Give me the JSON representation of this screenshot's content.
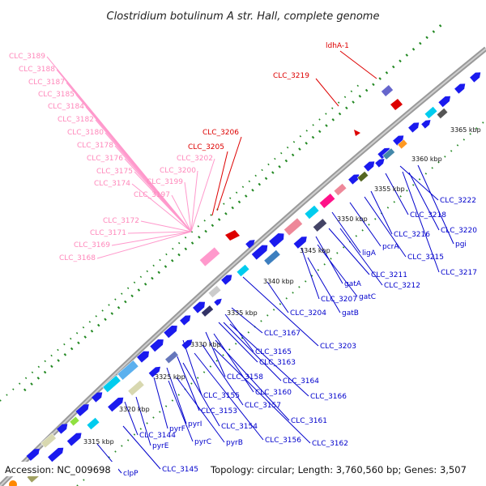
{
  "title": "Clostridium botulinum A str. Hall, complete genome",
  "footer": {
    "accession": "Accession: NC_009698",
    "summary": "Topology: circular; Length: 3,760,560 bp; Genes: 3,507"
  },
  "colors": {
    "forward_gene": "#1a1aee",
    "rRNA": "#ff66bb",
    "tRNA": "#dd0000",
    "pink_label": "#ff88bb",
    "red_label": "#dd0000",
    "blue_label": "#0000cc",
    "backbone": "#9a9a9a",
    "dots": "#228822"
  },
  "ticks": [
    "3315 kbp",
    "3320 kbp",
    "3325 kbp",
    "3330 kbp",
    "3335 kbp",
    "3340 kbp",
    "3345 kbp",
    "3350 kbp",
    "3355 kbp",
    "3360 kbp",
    "3365 kbp"
  ],
  "pink_labels": [
    "CLC_3189",
    "CLC_3188",
    "CLC_3187",
    "CLC_3185",
    "CLC_3184",
    "CLC_3182",
    "CLC_3180",
    "CLC_3178",
    "CLC_3176",
    "CLC_3175",
    "CLC_3174",
    "CLC_3200",
    "CLC_3199",
    "CLC_3202",
    "CLC_3197",
    "CLC_3172",
    "CLC_3171",
    "CLC_3169",
    "CLC_3168"
  ],
  "red_labels": [
    "ldhA-1",
    "CLC_3219",
    "CLC_3206",
    "CLC_3205"
  ],
  "blue_labels": [
    "CLC_3222",
    "CLC_3218",
    "CLC_3220",
    "CLC_3216",
    "pgi",
    "CLC_3215",
    "pcrA",
    "CLC_3217",
    "ligA",
    "CLC_3211",
    "CLC_3212",
    "gatA",
    "CLC_3207",
    "gatC",
    "gatB",
    "CLC_3204",
    "CLC_3203",
    "CLC_3167",
    "CLC_3165",
    "CLC_3163",
    "CLC_3164",
    "CLC_3158",
    "CLC_3160",
    "CLC_3166",
    "CLC_3155",
    "CLC_3157",
    "CLC_3153",
    "CLC_3161",
    "CLC_3154",
    "pyrI",
    "pyrF",
    "CLC_3156",
    "CLC_3162",
    "pyrC",
    "pyrB",
    "CLC_3144",
    "pyrE",
    "CLC_3145",
    "clpP"
  ]
}
